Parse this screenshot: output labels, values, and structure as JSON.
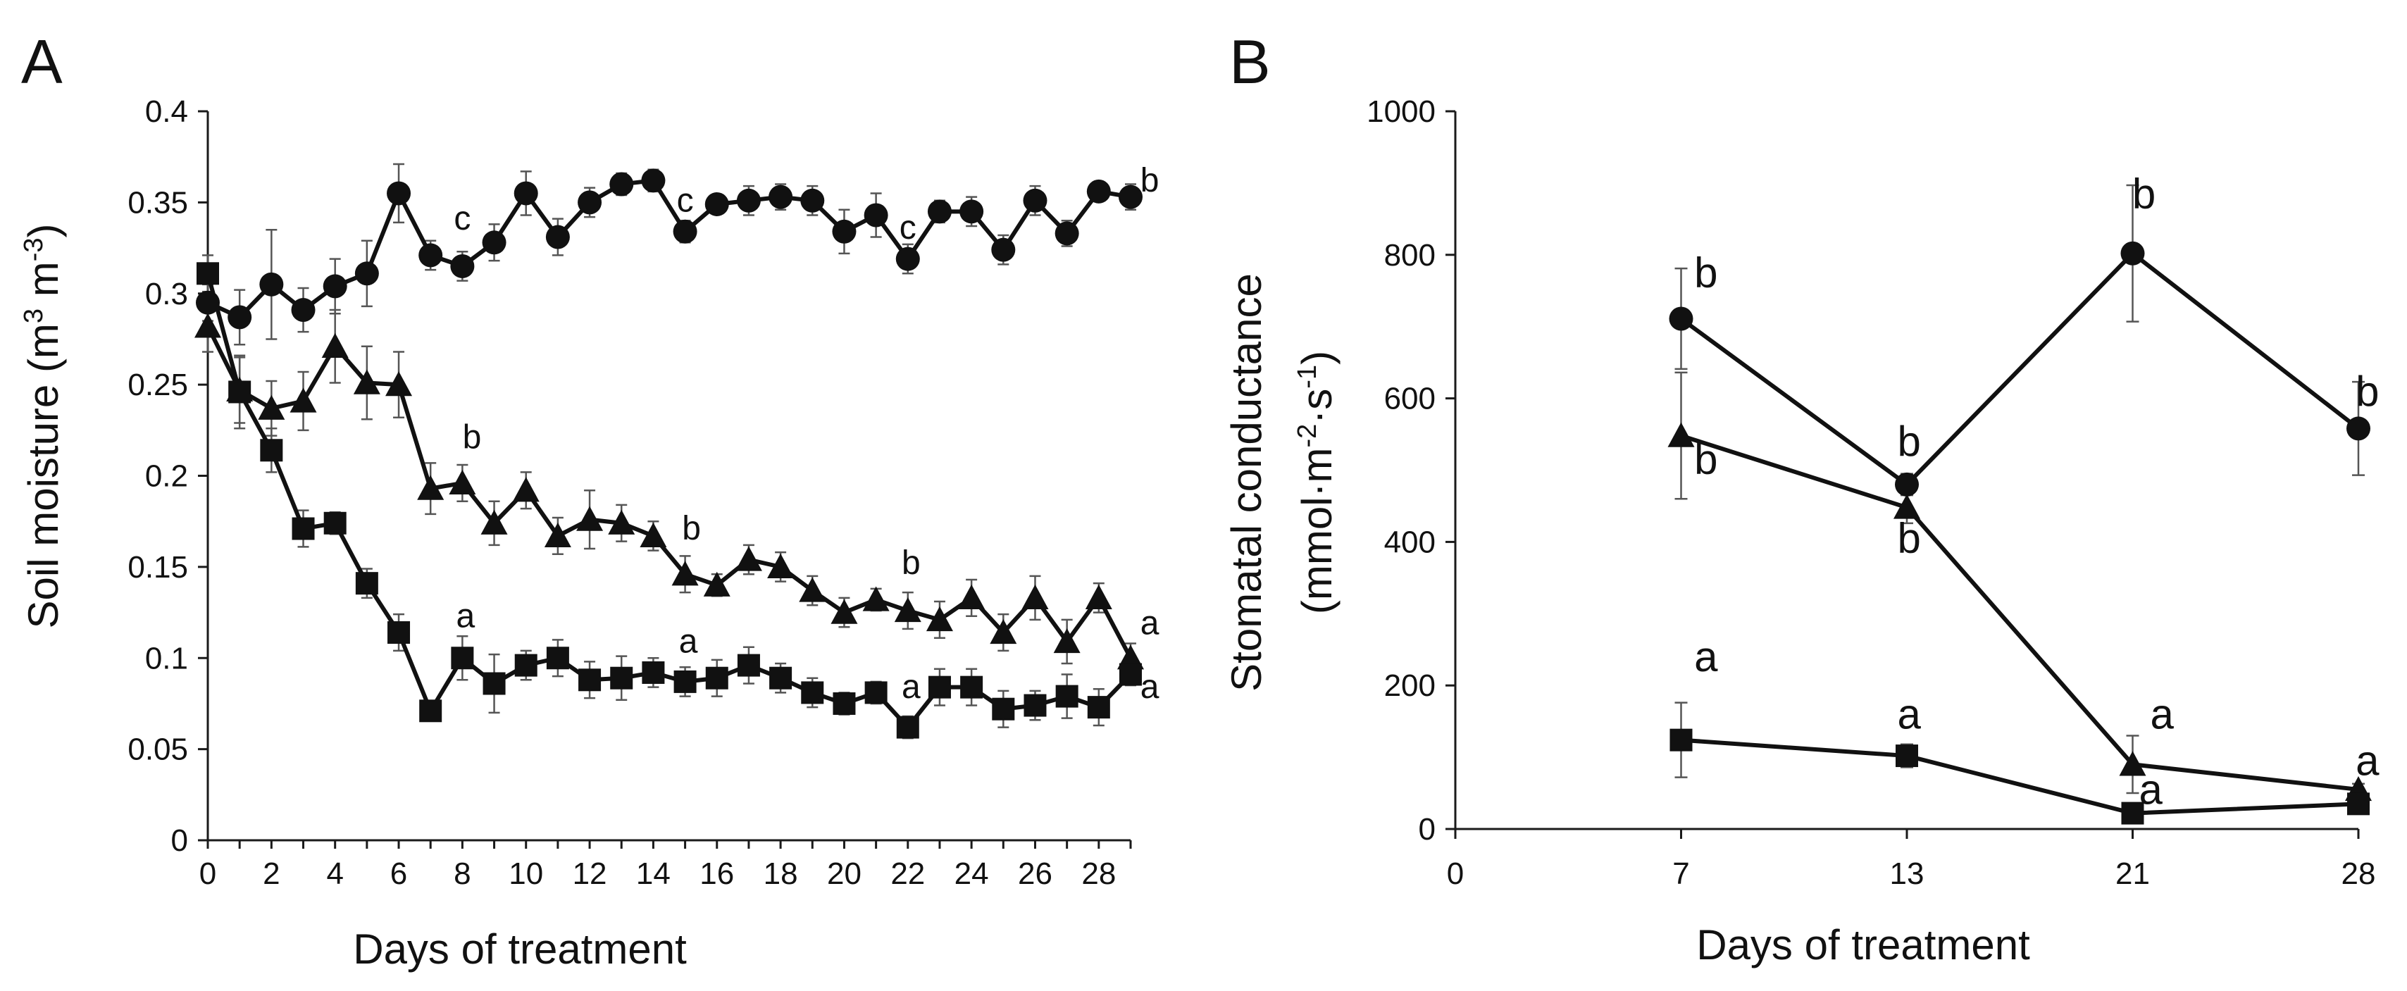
{
  "chart_data": [
    {
      "panel_label": "A",
      "type": "line",
      "xlabel": "Days of treatment",
      "ylabel": "Soil moisture (m",
      "ylabel_sup1": "3",
      "ylabel_mid": " m",
      "ylabel_sup2": "-3",
      "ylabel_end": ")",
      "xlim": [
        0,
        29
      ],
      "ylim": [
        0,
        0.4
      ],
      "xticks": [
        "0",
        "2",
        "4",
        "6",
        "8",
        "10",
        "12",
        "14",
        "16",
        "18",
        "20",
        "22",
        "24",
        "26",
        "28"
      ],
      "xtick_values": [
        0,
        2,
        4,
        6,
        8,
        10,
        12,
        14,
        16,
        18,
        20,
        22,
        24,
        26,
        28
      ],
      "yticks": [
        "0",
        "0.05",
        "0.1",
        "0.15",
        "0.2",
        "0.25",
        "0.3",
        "0.35",
        "0.4"
      ],
      "ytick_values": [
        0,
        0.05,
        0.1,
        0.15,
        0.2,
        0.25,
        0.3,
        0.35,
        0.4
      ],
      "x": [
        0,
        1,
        2,
        3,
        4,
        5,
        6,
        7,
        8,
        9,
        10,
        11,
        12,
        13,
        14,
        15,
        16,
        17,
        18,
        19,
        20,
        21,
        22,
        23,
        24,
        25,
        26,
        27,
        28,
        29
      ],
      "series": [
        {
          "name": "circle",
          "marker": "circle",
          "values": [
            0.295,
            0.287,
            0.305,
            0.291,
            0.304,
            0.311,
            0.355,
            0.321,
            0.315,
            0.328,
            0.355,
            0.331,
            0.35,
            0.36,
            0.362,
            0.334,
            0.349,
            0.351,
            0.353,
            0.351,
            0.334,
            0.343,
            0.319,
            0.345,
            0.345,
            0.324,
            0.351,
            0.333,
            0.356,
            0.353
          ],
          "errors": [
            0.01,
            0.015,
            0.03,
            0.012,
            0.015,
            0.018,
            0.016,
            0.008,
            0.008,
            0.01,
            0.012,
            0.01,
            0.008,
            0.006,
            0.006,
            0.006,
            0.005,
            0.008,
            0.007,
            0.008,
            0.012,
            0.012,
            0.008,
            0.006,
            0.008,
            0.008,
            0.008,
            0.007,
            0.005,
            0.007
          ]
        },
        {
          "name": "triangle",
          "marker": "triangle",
          "values": [
            0.282,
            0.247,
            0.237,
            0.241,
            0.271,
            0.251,
            0.25,
            0.193,
            0.196,
            0.174,
            0.192,
            0.167,
            0.176,
            0.174,
            0.167,
            0.146,
            0.14,
            0.154,
            0.15,
            0.137,
            0.125,
            0.132,
            0.126,
            0.121,
            0.133,
            0.114,
            0.133,
            0.109,
            0.133,
            0.1
          ],
          "errors": [
            0.014,
            0.018,
            0.015,
            0.016,
            0.02,
            0.02,
            0.018,
            0.014,
            0.01,
            0.012,
            0.01,
            0.01,
            0.016,
            0.01,
            0.008,
            0.01,
            0.006,
            0.008,
            0.008,
            0.008,
            0.008,
            0.006,
            0.01,
            0.01,
            0.01,
            0.01,
            0.012,
            0.012,
            0.008,
            0.008
          ]
        },
        {
          "name": "square",
          "marker": "square",
          "values": [
            0.311,
            0.246,
            0.214,
            0.171,
            0.174,
            0.141,
            0.114,
            0.071,
            0.1,
            0.086,
            0.096,
            0.1,
            0.088,
            0.089,
            0.092,
            0.087,
            0.089,
            0.096,
            0.089,
            0.081,
            0.075,
            0.081,
            0.062,
            0.084,
            0.084,
            0.072,
            0.074,
            0.079,
            0.073,
            0.091
          ],
          "errors": [
            0.01,
            0.02,
            0.012,
            0.01,
            0.006,
            0.008,
            0.01,
            0.004,
            0.012,
            0.016,
            0.008,
            0.01,
            0.01,
            0.012,
            0.008,
            0.008,
            0.01,
            0.01,
            0.008,
            0.008,
            0.006,
            0.006,
            0.006,
            0.01,
            0.01,
            0.01,
            0.008,
            0.012,
            0.01,
            0.006
          ]
        }
      ],
      "annotations": [
        {
          "text": "c",
          "x": 8,
          "y": 0.335
        },
        {
          "text": "c",
          "x": 15,
          "y": 0.345
        },
        {
          "text": "c",
          "x": 22,
          "y": 0.33
        },
        {
          "text": "b",
          "x": 29.6,
          "y": 0.356
        },
        {
          "text": "b",
          "x": 8.3,
          "y": 0.215
        },
        {
          "text": "b",
          "x": 15.2,
          "y": 0.165
        },
        {
          "text": "b",
          "x": 22.1,
          "y": 0.146
        },
        {
          "text": "a",
          "x": 29.6,
          "y": 0.113
        },
        {
          "text": "a",
          "x": 8.1,
          "y": 0.117
        },
        {
          "text": "a",
          "x": 15.1,
          "y": 0.103
        },
        {
          "text": "a",
          "x": 22.1,
          "y": 0.078
        },
        {
          "text": "a",
          "x": 29.6,
          "y": 0.078
        }
      ]
    },
    {
      "panel_label": "B",
      "type": "line",
      "xlabel": "Days of treatment",
      "ylabel_line1": "Stomatal conductance",
      "ylabel_line2_pre": "(mmol·m",
      "ylabel_sup1": "-2",
      "ylabel_mid": "·s",
      "ylabel_sup2": "-1",
      "ylabel_end": ")",
      "ylim": [
        0,
        1000
      ],
      "xticks": [
        "0",
        "7",
        "13",
        "21",
        "28"
      ],
      "xtick_positions": [
        0,
        1,
        2,
        3,
        4
      ],
      "yticks": [
        "0",
        "200",
        "400",
        "600",
        "800",
        "1000"
      ],
      "ytick_values": [
        0,
        200,
        400,
        600,
        800,
        1000
      ],
      "series": [
        {
          "name": "circle",
          "marker": "circle",
          "values": [
            711,
            480,
            802,
            558
          ],
          "errors": [
            70,
            15,
            95,
            65
          ]
        },
        {
          "name": "triangle",
          "marker": "triangle",
          "values": [
            548,
            448,
            90,
            55
          ],
          "errors": [
            88,
            22,
            40,
            8
          ]
        },
        {
          "name": "square",
          "marker": "square",
          "values": [
            124,
            102,
            22,
            35
          ],
          "errors": [
            52,
            16,
            10,
            10
          ]
        }
      ],
      "annotations": [
        {
          "text": "b",
          "x": 1.11,
          "y": 755
        },
        {
          "text": "b",
          "x": 1.11,
          "y": 495
        },
        {
          "text": "b",
          "x": 2.01,
          "y": 520
        },
        {
          "text": "b",
          "x": 2.01,
          "y": 385
        },
        {
          "text": "b",
          "x": 3.05,
          "y": 865
        },
        {
          "text": "b",
          "x": 4.04,
          "y": 590
        },
        {
          "text": "a",
          "x": 1.11,
          "y": 220
        },
        {
          "text": "a",
          "x": 2.01,
          "y": 140
        },
        {
          "text": "a",
          "x": 3.13,
          "y": 140
        },
        {
          "text": "a",
          "x": 3.08,
          "y": 35
        },
        {
          "text": "a",
          "x": 4.04,
          "y": 75
        }
      ]
    }
  ]
}
